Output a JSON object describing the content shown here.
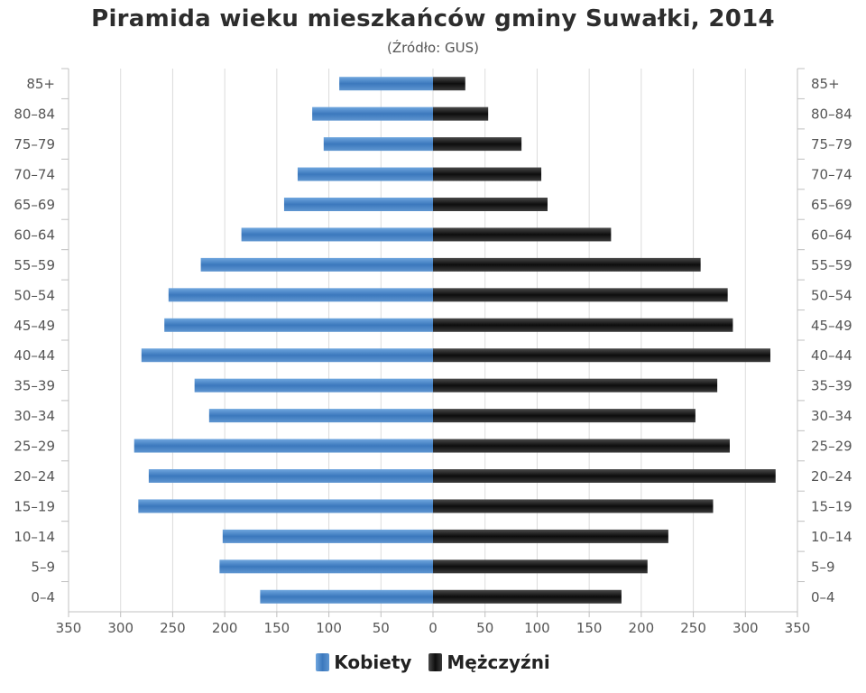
{
  "chart_data": {
    "type": "bar",
    "title": "Piramida wieku mieszkańców gminy Suwałki, 2014",
    "subtitle": "(Źródło: GUS)",
    "categories": [
      "85+",
      "80–84",
      "75–79",
      "70–74",
      "65–69",
      "60–64",
      "55–59",
      "50–54",
      "45–49",
      "40–44",
      "35–39",
      "30–34",
      "25–29",
      "20–24",
      "15–19",
      "10–14",
      "5–9",
      "0–4"
    ],
    "series": [
      {
        "name": "Kobiety",
        "color": "#4a86c5",
        "values": [
          90,
          116,
          105,
          130,
          143,
          184,
          223,
          254,
          258,
          280,
          229,
          215,
          287,
          273,
          283,
          202,
          205,
          166
        ]
      },
      {
        "name": "Mężczyźni",
        "color": "#1a1a1a",
        "values": [
          31,
          53,
          85,
          104,
          110,
          171,
          257,
          283,
          288,
          324,
          273,
          252,
          285,
          329,
          269,
          226,
          206,
          181
        ]
      }
    ],
    "xlim": [
      -350,
      350
    ],
    "x_ticks": [
      "350",
      "300",
      "250",
      "200",
      "150",
      "100",
      "50",
      "0",
      "50",
      "100",
      "150",
      "200",
      "250",
      "300",
      "350"
    ],
    "grid": true,
    "legend": "bottom-center"
  }
}
